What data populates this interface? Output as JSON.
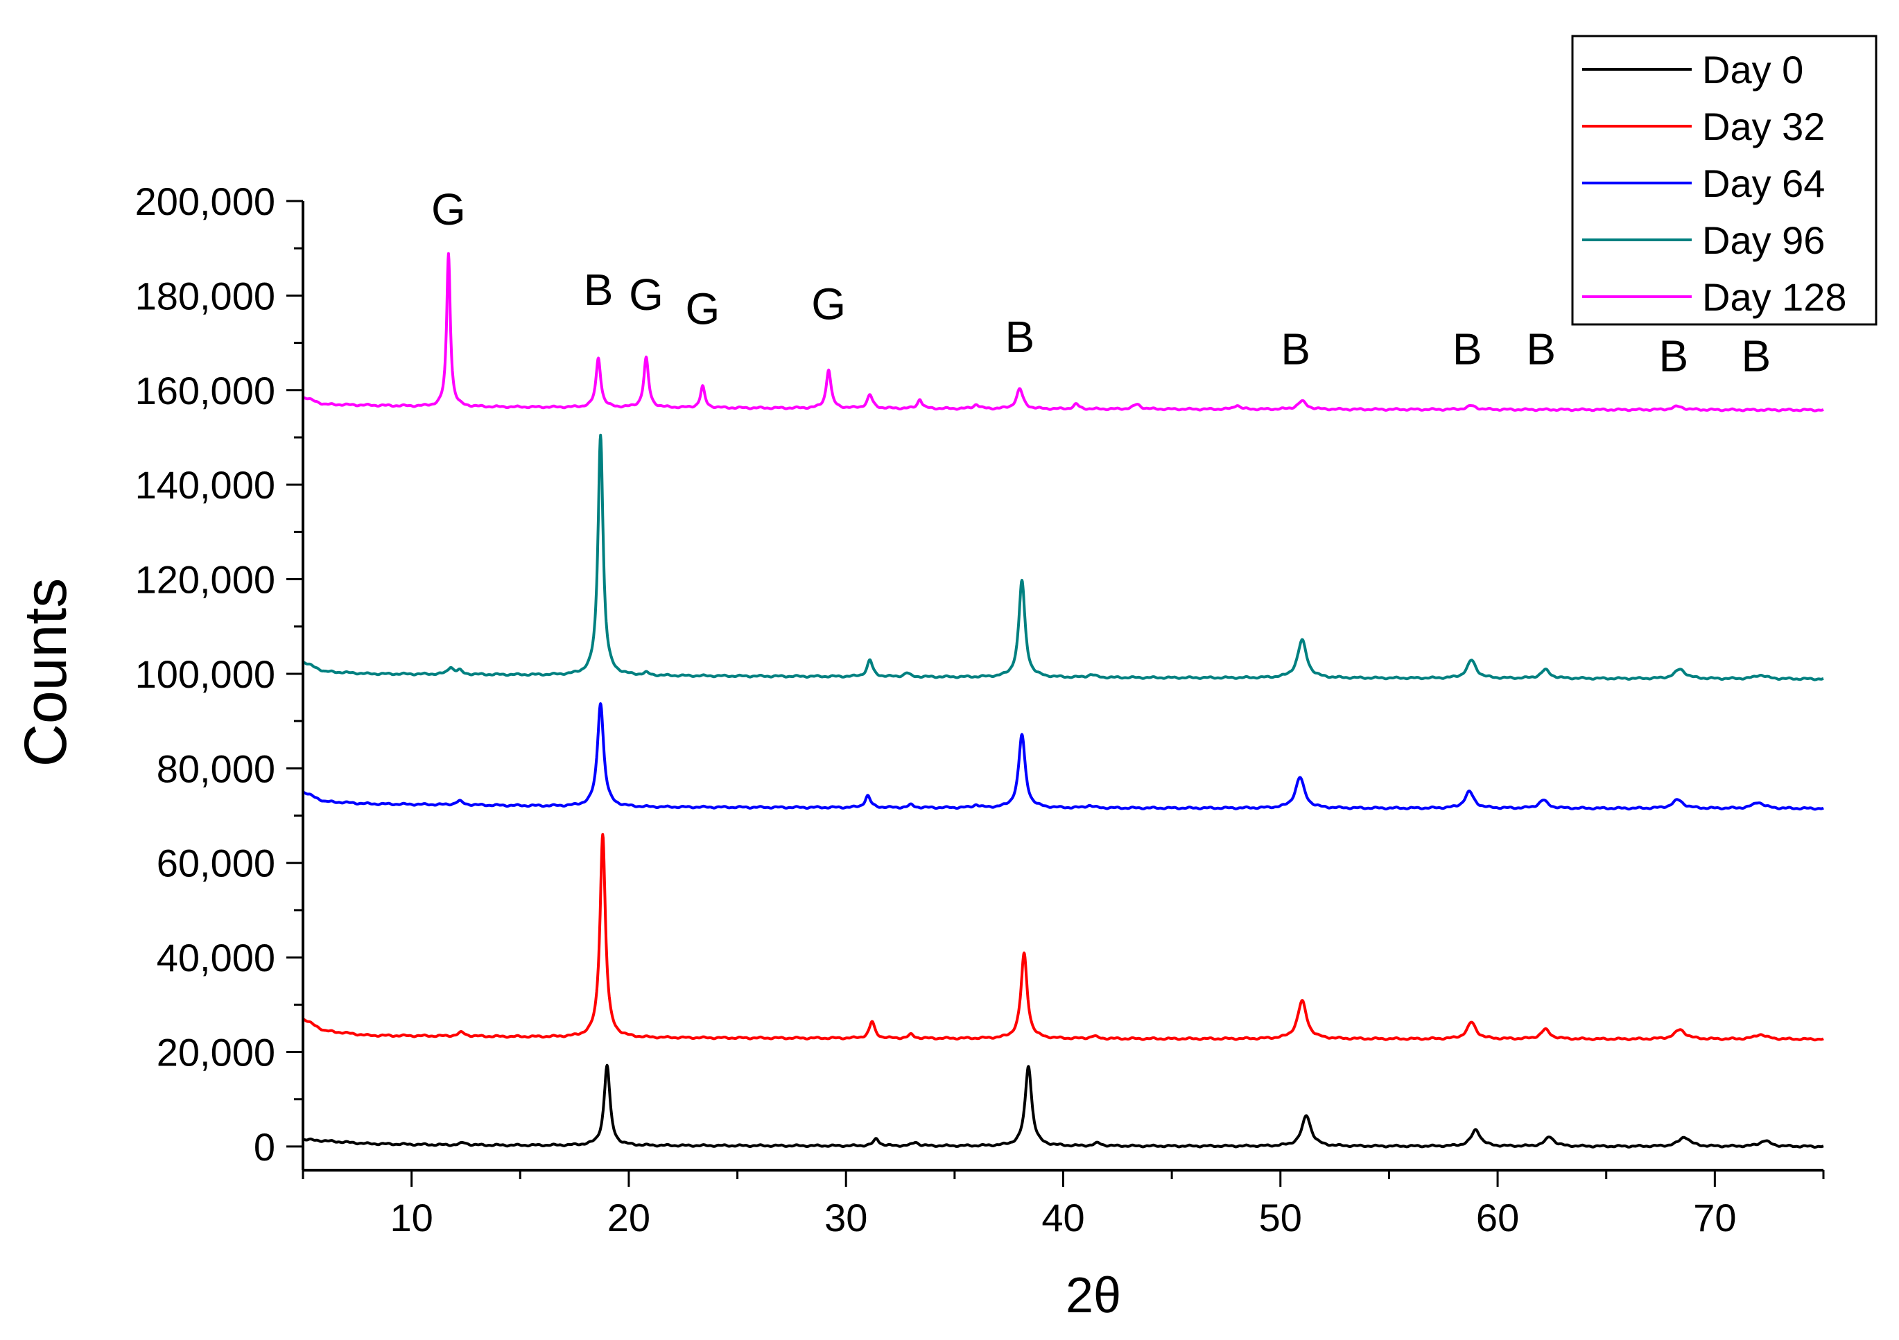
{
  "chart_data": {
    "type": "line",
    "title": "",
    "xlabel": "2θ",
    "ylabel": "Counts",
    "xlim": [
      5,
      75
    ],
    "ylim": [
      -5000,
      200000
    ],
    "x_major_ticks": [
      10,
      20,
      30,
      40,
      50,
      60,
      70
    ],
    "x_tick_labels": [
      "10",
      "20",
      "30",
      "40",
      "50",
      "60",
      "70"
    ],
    "x_minor_ticks": [
      5,
      15,
      25,
      35,
      45,
      55,
      65,
      75
    ],
    "y_major_ticks": [
      0,
      20000,
      40000,
      60000,
      80000,
      100000,
      120000,
      140000,
      160000,
      180000,
      200000
    ],
    "y_tick_labels": [
      "0",
      "20,000",
      "40,000",
      "60,000",
      "80,000",
      "100,000",
      "120,000",
      "140,000",
      "160,000",
      "180,000",
      "200,000"
    ],
    "legend_position": "top-right",
    "series": [
      {
        "name": "Day 0",
        "color": "#000000",
        "baseline": [
          [
            5,
            1500
          ],
          [
            8,
            600
          ],
          [
            12,
            300
          ],
          [
            20,
            200
          ],
          [
            40,
            100
          ],
          [
            75,
            0
          ]
        ],
        "peaks": [
          [
            12.4,
            500,
            0.2
          ],
          [
            19.0,
            17000,
            0.16
          ],
          [
            31.4,
            1500,
            0.15
          ],
          [
            33.2,
            800,
            0.15
          ],
          [
            38.4,
            17000,
            0.18
          ],
          [
            41.6,
            600,
            0.2
          ],
          [
            51.2,
            6500,
            0.25
          ],
          [
            59.0,
            3500,
            0.25
          ],
          [
            62.4,
            2000,
            0.25
          ],
          [
            68.6,
            2000,
            0.3
          ],
          [
            72.3,
            1200,
            0.3
          ]
        ]
      },
      {
        "name": "Day 32",
        "color": "#ff0000",
        "baseline": [
          [
            5,
            27000
          ],
          [
            6,
            24500
          ],
          [
            8,
            23500
          ],
          [
            20,
            23000
          ],
          [
            40,
            22800
          ],
          [
            75,
            22700
          ]
        ],
        "peaks": [
          [
            12.3,
            800,
            0.2
          ],
          [
            18.8,
            43000,
            0.15
          ],
          [
            31.2,
            3500,
            0.15
          ],
          [
            33.0,
            800,
            0.15
          ],
          [
            38.2,
            18000,
            0.17
          ],
          [
            41.4,
            500,
            0.2
          ],
          [
            51.0,
            8000,
            0.25
          ],
          [
            58.8,
            3500,
            0.25
          ],
          [
            62.2,
            2000,
            0.25
          ],
          [
            68.4,
            2000,
            0.3
          ],
          [
            72.1,
            1000,
            0.3
          ]
        ]
      },
      {
        "name": "Day 64",
        "color": "#0000ff",
        "baseline": [
          [
            5,
            75000
          ],
          [
            6,
            73000
          ],
          [
            8,
            72500
          ],
          [
            20,
            71800
          ],
          [
            40,
            71600
          ],
          [
            75,
            71500
          ]
        ],
        "peaks": [
          [
            12.2,
            800,
            0.2
          ],
          [
            18.7,
            22000,
            0.17
          ],
          [
            31.0,
            2500,
            0.15
          ],
          [
            33.0,
            600,
            0.15
          ],
          [
            36.0,
            600,
            0.15
          ],
          [
            38.1,
            15500,
            0.18
          ],
          [
            41.2,
            500,
            0.2
          ],
          [
            50.9,
            6500,
            0.25
          ],
          [
            58.7,
            3500,
            0.25
          ],
          [
            62.1,
            1700,
            0.25
          ],
          [
            68.3,
            1800,
            0.3
          ],
          [
            72.0,
            1300,
            0.3
          ]
        ]
      },
      {
        "name": "Day 96",
        "color": "#008080",
        "baseline": [
          [
            5,
            102500
          ],
          [
            6,
            100500
          ],
          [
            8,
            100000
          ],
          [
            20,
            99600
          ],
          [
            40,
            99200
          ],
          [
            75,
            98900
          ]
        ],
        "peaks": [
          [
            11.8,
            1500,
            0.15
          ],
          [
            12.2,
            800,
            0.15
          ],
          [
            18.7,
            51000,
            0.14
          ],
          [
            20.8,
            500,
            0.15
          ],
          [
            31.1,
            3500,
            0.15
          ],
          [
            32.8,
            800,
            0.15
          ],
          [
            38.1,
            20500,
            0.17
          ],
          [
            41.3,
            600,
            0.2
          ],
          [
            51.0,
            8000,
            0.25
          ],
          [
            58.8,
            3800,
            0.25
          ],
          [
            62.2,
            1800,
            0.25
          ],
          [
            68.4,
            2000,
            0.3
          ],
          [
            72.1,
            800,
            0.3
          ]
        ]
      },
      {
        "name": "Day 128",
        "color": "#ff00ff",
        "baseline": [
          [
            5,
            158500
          ],
          [
            6,
            157000
          ],
          [
            8,
            156800
          ],
          [
            11,
            156500
          ],
          [
            20,
            156300
          ],
          [
            40,
            156000
          ],
          [
            75,
            155800
          ]
        ],
        "peaks": [
          [
            11.7,
            32500,
            0.1
          ],
          [
            18.6,
            10500,
            0.13
          ],
          [
            20.8,
            10500,
            0.13
          ],
          [
            23.4,
            4500,
            0.12
          ],
          [
            29.2,
            8200,
            0.13
          ],
          [
            31.1,
            2800,
            0.15
          ],
          [
            33.4,
            2000,
            0.12
          ],
          [
            36.0,
            900,
            0.15
          ],
          [
            38.0,
            4200,
            0.18
          ],
          [
            40.6,
            1000,
            0.15
          ],
          [
            43.4,
            1000,
            0.2
          ],
          [
            48.0,
            900,
            0.15
          ],
          [
            51.0,
            1700,
            0.25
          ],
          [
            58.8,
            800,
            0.25
          ],
          [
            68.3,
            700,
            0.3
          ]
        ]
      }
    ],
    "annotations": [
      {
        "text": "G",
        "x": 11.7,
        "y": 195000
      },
      {
        "text": "B",
        "x": 18.6,
        "y": 178000
      },
      {
        "text": "G",
        "x": 20.8,
        "y": 177000
      },
      {
        "text": "G",
        "x": 23.4,
        "y": 174000
      },
      {
        "text": "G",
        "x": 29.2,
        "y": 175000
      },
      {
        "text": "B",
        "x": 38.0,
        "y": 168000
      },
      {
        "text": "B",
        "x": 50.7,
        "y": 165500
      },
      {
        "text": "B",
        "x": 58.6,
        "y": 165500
      },
      {
        "text": "B",
        "x": 62.0,
        "y": 165500
      },
      {
        "text": "B",
        "x": 68.1,
        "y": 164000
      },
      {
        "text": "B",
        "x": 71.9,
        "y": 164000
      }
    ]
  }
}
